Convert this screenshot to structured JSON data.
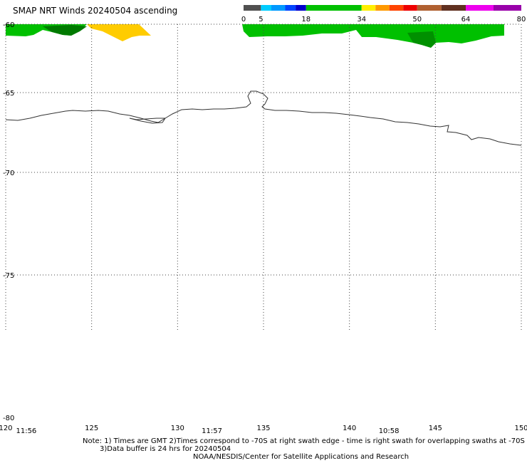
{
  "title": "SMAP NRT Winds 20240504 ascending",
  "colorbar": {
    "labels": [
      "0",
      "5",
      "18",
      "34",
      "50",
      "64",
      "80"
    ],
    "segments": [
      {
        "from": 0,
        "to": 5,
        "color": "#505050"
      },
      {
        "from": 5,
        "to": 8,
        "color": "#00ccff"
      },
      {
        "from": 8,
        "to": 12,
        "color": "#0099ff"
      },
      {
        "from": 12,
        "to": 15,
        "color": "#0044ff"
      },
      {
        "from": 15,
        "to": 18,
        "color": "#0000cc"
      },
      {
        "from": 18,
        "to": 34,
        "color": "#00c000"
      },
      {
        "from": 34,
        "to": 38,
        "color": "#ffee00"
      },
      {
        "from": 38,
        "to": 42,
        "color": "#ff9900"
      },
      {
        "from": 42,
        "to": 46,
        "color": "#ff4400"
      },
      {
        "from": 46,
        "to": 50,
        "color": "#ee0000"
      },
      {
        "from": 50,
        "to": 57,
        "color": "#b06030"
      },
      {
        "from": 57,
        "to": 64,
        "color": "#603020"
      },
      {
        "from": 64,
        "to": 72,
        "color": "#ee00ee"
      },
      {
        "from": 72,
        "to": 80,
        "color": "#9900aa"
      }
    ]
  },
  "map": {
    "lon_range": [
      120,
      150
    ],
    "lat_range": [
      -60,
      -80
    ],
    "lon_ticks": [
      "120",
      "125",
      "130",
      "135",
      "140",
      "145",
      "150"
    ],
    "lat_ticks": [
      "-60",
      "-65",
      "-70",
      "-75",
      "-80"
    ],
    "land_color": "#ffffff",
    "grid": "dotted"
  },
  "swath_times": [
    {
      "label": "11:56",
      "lon": 120.6
    },
    {
      "label": "11:57",
      "lon": 131.4
    },
    {
      "label": "10:58",
      "lon": 141.7
    }
  ],
  "notes": {
    "line1": "Note: 1) Times are GMT 2)Times correspond to -70S at right swath edge - time is right swath for overlapping swaths at -70S",
    "line2": "3)Data buffer is 24 hrs for 20240504",
    "line3": "NOAA/NESDIS/Center for Satellite Applications and Research"
  }
}
